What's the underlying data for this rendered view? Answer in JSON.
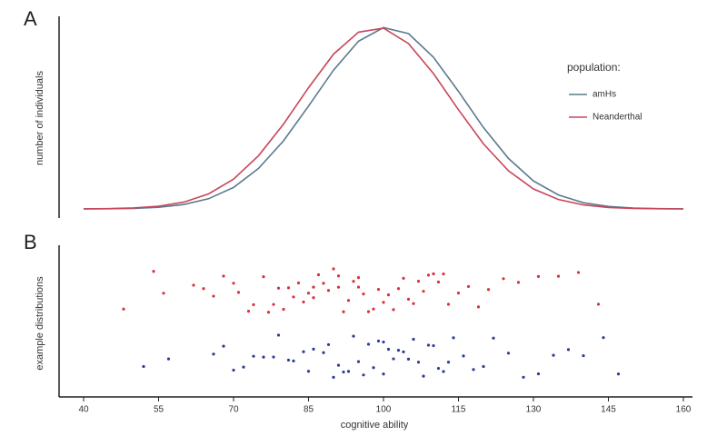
{
  "chart_data": [
    {
      "type": "line",
      "panel_label": "A",
      "ylabel": "number of individuals",
      "legend_title": "population:",
      "xlim": [
        40,
        160
      ],
      "ylim": [
        0,
        1.03
      ],
      "x": [
        40,
        45,
        50,
        55,
        60,
        65,
        70,
        75,
        80,
        85,
        90,
        95,
        100,
        105,
        110,
        115,
        120,
        125,
        130,
        135,
        140,
        145,
        150,
        155,
        160
      ],
      "series": [
        {
          "name": "amHs",
          "color": "#5b7a8c",
          "values": [
            0.0003,
            0.0009,
            0.0031,
            0.0091,
            0.0238,
            0.056,
            0.118,
            0.223,
            0.375,
            0.566,
            0.764,
            0.923,
            0.998,
            0.965,
            0.835,
            0.647,
            0.448,
            0.278,
            0.154,
            0.077,
            0.034,
            0.0136,
            0.0048,
            0.0015,
            0.0004
          ]
        },
        {
          "name": "Neanderthal",
          "color": "#c8465a",
          "values": [
            0.0005,
            0.0017,
            0.0054,
            0.0149,
            0.0371,
            0.0826,
            0.164,
            0.293,
            0.467,
            0.667,
            0.852,
            0.973,
            0.995,
            0.91,
            0.745,
            0.546,
            0.358,
            0.21,
            0.11,
            0.052,
            0.0218,
            0.0082,
            0.0028,
            0.0008,
            0.0002
          ]
        }
      ]
    },
    {
      "type": "strip",
      "panel_label": "B",
      "ylabel": "example distributions",
      "xlabel": "cognitive ability",
      "xlim": [
        40,
        160
      ],
      "xticks": [
        40,
        55,
        70,
        85,
        100,
        115,
        130,
        145,
        160
      ],
      "series": [
        {
          "color": "#d9303a",
          "x": [
            48,
            54,
            56,
            62,
            64,
            66,
            68,
            70,
            71,
            73,
            74,
            76,
            77,
            78,
            79,
            80,
            81,
            82,
            83,
            84,
            85,
            86,
            86,
            87,
            88,
            89,
            90,
            91,
            91,
            92,
            93,
            94,
            95,
            95,
            96,
            97,
            98,
            99,
            100,
            101,
            102,
            103,
            104,
            105,
            106,
            107,
            108,
            109,
            110,
            111,
            112,
            113,
            115,
            117,
            119,
            121,
            124,
            127,
            131,
            135,
            139,
            143
          ]
        },
        {
          "color": "#2a3d95",
          "x": [
            52,
            57,
            66,
            68,
            70,
            72,
            74,
            76,
            78,
            79,
            81,
            82,
            84,
            85,
            86,
            88,
            89,
            90,
            91,
            92,
            93,
            94,
            95,
            96,
            97,
            98,
            99,
            100,
            100,
            101,
            102,
            103,
            104,
            105,
            106,
            107,
            108,
            109,
            110,
            111,
            112,
            113,
            114,
            116,
            118,
            120,
            122,
            125,
            128,
            131,
            134,
            137,
            140,
            144,
            147
          ]
        }
      ]
    }
  ]
}
